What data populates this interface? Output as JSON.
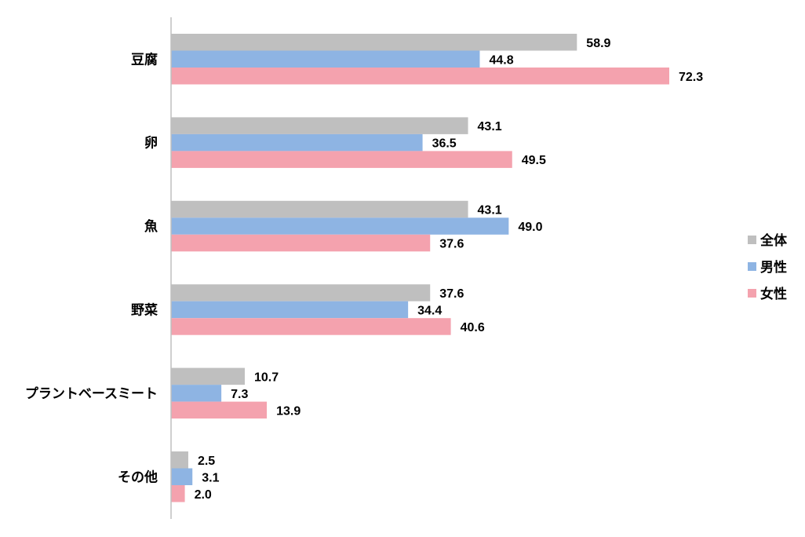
{
  "chart_data": {
    "type": "bar",
    "orientation": "horizontal",
    "categories": [
      "豆腐",
      "卵",
      "魚",
      "野菜",
      "プラントベースミート",
      "その他"
    ],
    "series": [
      {
        "name": "全体",
        "color": "#bfbfbf",
        "values": [
          58.9,
          43.1,
          43.1,
          37.6,
          10.7,
          2.5
        ]
      },
      {
        "name": "男性",
        "color": "#8eb4e3",
        "values": [
          44.8,
          36.5,
          49.0,
          34.4,
          7.3,
          3.1
        ]
      },
      {
        "name": "女性",
        "color": "#f4a2ae",
        "values": [
          72.3,
          49.5,
          37.6,
          40.6,
          13.9,
          2.0
        ]
      }
    ],
    "value_labels": [
      [
        "58.9",
        "44.8",
        "72.3"
      ],
      [
        "43.1",
        "36.5",
        "49.5"
      ],
      [
        "43.1",
        "49.0",
        "37.6"
      ],
      [
        "37.6",
        "34.4",
        "40.6"
      ],
      [
        "10.7",
        "7.3",
        "13.9"
      ],
      [
        "2.5",
        "3.1",
        "2.0"
      ]
    ],
    "xlim": [
      0,
      100
    ],
    "grid": false,
    "legend_position": "right"
  }
}
